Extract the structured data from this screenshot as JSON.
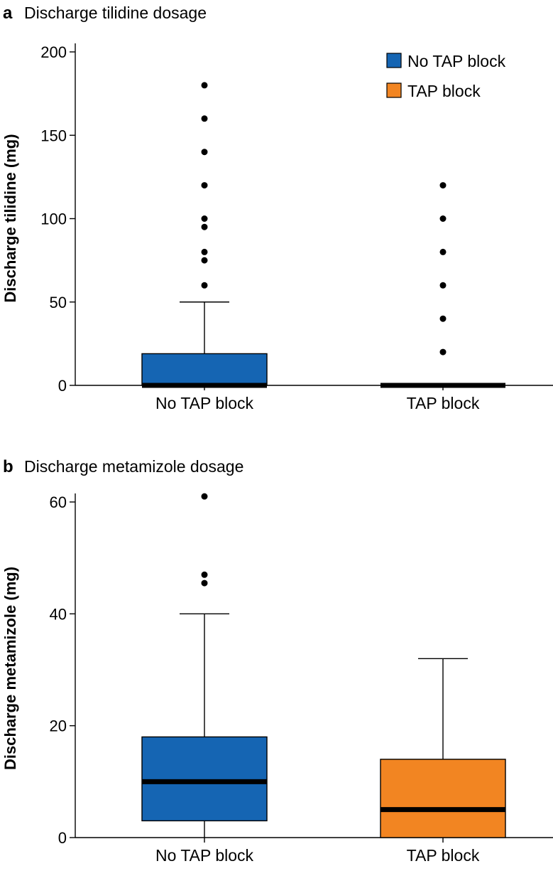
{
  "chart_data": [
    {
      "type": "box",
      "panel": "a",
      "title": "Discharge tilidine dosage",
      "ylabel": "Discharge tilidine (mg)",
      "ylim": [
        0,
        200
      ],
      "yticks": [
        0,
        50,
        100,
        150,
        200
      ],
      "legend": {
        "position": "top-right",
        "items": [
          {
            "label": "No TAP block",
            "color": "#1565b3"
          },
          {
            "label": "TAP block",
            "color": "#f28522"
          }
        ]
      },
      "categories": [
        "No TAP block",
        "TAP block"
      ],
      "series": [
        {
          "name": "No TAP block",
          "color": "#1565b3",
          "min": 0,
          "q1": 0,
          "median": 0,
          "q3": 19,
          "max": 50,
          "outliers": [
            60,
            75,
            80,
            95,
            100,
            120,
            140,
            160,
            180
          ]
        },
        {
          "name": "TAP block",
          "color": "#f28522",
          "min": 0,
          "q1": 0,
          "median": 0,
          "q3": 0,
          "max": 0,
          "outliers": [
            20,
            40,
            60,
            80,
            100,
            120
          ]
        }
      ]
    },
    {
      "type": "box",
      "panel": "b",
      "title": "Discharge metamizole dosage",
      "ylabel": "Discharge metamizole (mg)",
      "ylim": [
        0,
        60
      ],
      "yticks": [
        0,
        20,
        40,
        60
      ],
      "categories": [
        "No TAP block",
        "TAP block"
      ],
      "series": [
        {
          "name": "No TAP block",
          "color": "#1565b3",
          "min": 0,
          "q1": 3,
          "median": 10,
          "q3": 18,
          "max": 40,
          "outliers": [
            45.5,
            47,
            61
          ]
        },
        {
          "name": "TAP block",
          "color": "#f28522",
          "min": 0,
          "q1": 0,
          "median": 5,
          "q3": 14,
          "max": 32,
          "outliers": []
        }
      ]
    }
  ]
}
